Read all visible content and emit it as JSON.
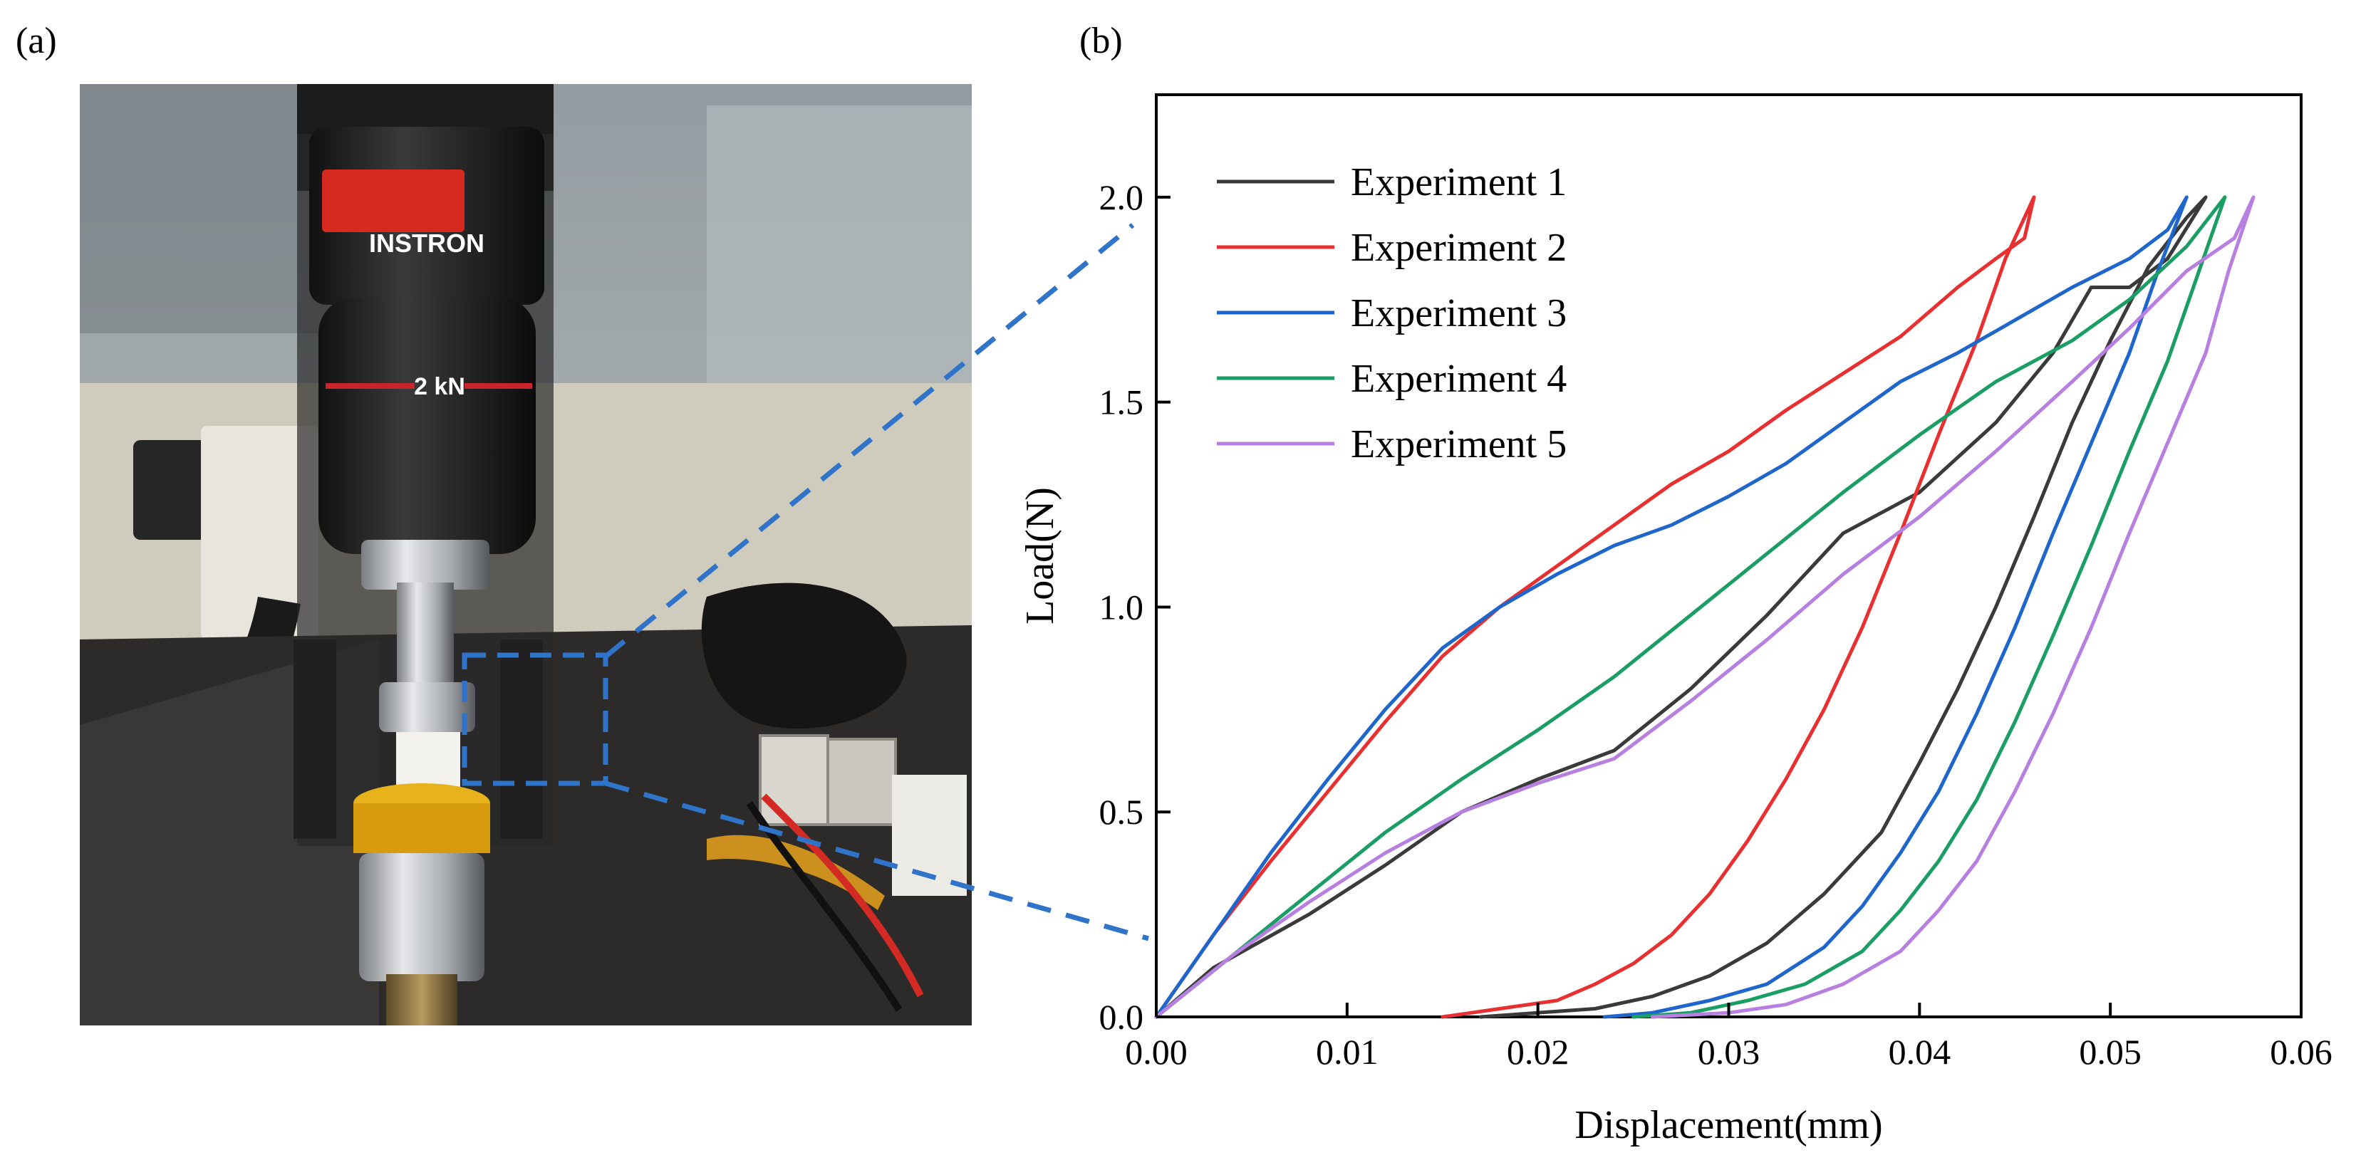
{
  "panels": {
    "a": {
      "label": "(a)"
    },
    "b": {
      "label": "(b)"
    }
  },
  "photo": {
    "brand_text": "INSTRON",
    "capacity_text": "2 kN"
  },
  "colors": {
    "callout": "#2f74c9",
    "exp1": "#3a3a3a",
    "exp2": "#e83030",
    "exp3": "#1f66cc",
    "exp4": "#1a9e63",
    "exp5": "#b77fe0"
  },
  "chart_data": {
    "type": "line",
    "title": "",
    "xlabel": "Displacement(mm)",
    "ylabel": "Load(N)",
    "xlim": [
      0.0,
      0.06
    ],
    "ylim": [
      0.0,
      2.25
    ],
    "xticks": [
      0.0,
      0.01,
      0.02,
      0.03,
      0.04,
      0.05,
      0.06
    ],
    "xtick_labels": [
      "0.00",
      "0.01",
      "0.02",
      "0.03",
      "0.04",
      "0.05",
      "0.06"
    ],
    "yticks": [
      0.0,
      0.5,
      1.0,
      1.5,
      2.0
    ],
    "ytick_labels": [
      "0.0",
      "0.5",
      "1.0",
      "1.5",
      "2.0"
    ],
    "grid": false,
    "legend_position": "top-left",
    "series": [
      {
        "name": "Experiment 1",
        "color": "#3a3a3a",
        "x": [
          0.0,
          0.003,
          0.008,
          0.012,
          0.016,
          0.02,
          0.024,
          0.028,
          0.032,
          0.036,
          0.04,
          0.044,
          0.047,
          0.049,
          0.051,
          0.053,
          0.055,
          0.054,
          0.052,
          0.05,
          0.048,
          0.046,
          0.044,
          0.042,
          0.04,
          0.038,
          0.035,
          0.032,
          0.029,
          0.026,
          0.023,
          0.02,
          0.017
        ],
        "y": [
          0.0,
          0.12,
          0.25,
          0.37,
          0.5,
          0.58,
          0.65,
          0.8,
          0.98,
          1.18,
          1.28,
          1.45,
          1.62,
          1.78,
          1.78,
          1.85,
          2.0,
          1.95,
          1.83,
          1.65,
          1.45,
          1.22,
          1.0,
          0.8,
          0.62,
          0.45,
          0.3,
          0.18,
          0.1,
          0.05,
          0.02,
          0.01,
          0.0
        ]
      },
      {
        "name": "Experiment 2",
        "color": "#e83030",
        "x": [
          0.0,
          0.003,
          0.006,
          0.009,
          0.012,
          0.015,
          0.018,
          0.021,
          0.024,
          0.027,
          0.03,
          0.033,
          0.036,
          0.039,
          0.042,
          0.044,
          0.0455,
          0.046,
          0.0445,
          0.043,
          0.041,
          0.039,
          0.037,
          0.035,
          0.033,
          0.031,
          0.029,
          0.027,
          0.025,
          0.023,
          0.021,
          0.018,
          0.015
        ],
        "y": [
          0.0,
          0.2,
          0.38,
          0.55,
          0.72,
          0.88,
          1.0,
          1.1,
          1.2,
          1.3,
          1.38,
          1.48,
          1.57,
          1.66,
          1.78,
          1.85,
          1.9,
          2.0,
          1.85,
          1.65,
          1.42,
          1.18,
          0.95,
          0.75,
          0.58,
          0.43,
          0.3,
          0.2,
          0.13,
          0.08,
          0.04,
          0.02,
          0.0
        ]
      },
      {
        "name": "Experiment 3",
        "color": "#1f66cc",
        "x": [
          0.0,
          0.003,
          0.006,
          0.009,
          0.012,
          0.015,
          0.018,
          0.021,
          0.024,
          0.027,
          0.03,
          0.033,
          0.036,
          0.039,
          0.042,
          0.045,
          0.048,
          0.051,
          0.053,
          0.054,
          0.0525,
          0.051,
          0.049,
          0.047,
          0.045,
          0.043,
          0.041,
          0.039,
          0.037,
          0.035,
          0.032,
          0.029,
          0.026,
          0.0235
        ],
        "y": [
          0.0,
          0.2,
          0.4,
          0.58,
          0.75,
          0.9,
          1.0,
          1.08,
          1.15,
          1.2,
          1.27,
          1.35,
          1.45,
          1.55,
          1.62,
          1.7,
          1.78,
          1.85,
          1.92,
          2.0,
          1.82,
          1.62,
          1.4,
          1.18,
          0.95,
          0.74,
          0.55,
          0.4,
          0.27,
          0.17,
          0.08,
          0.04,
          0.01,
          0.0
        ]
      },
      {
        "name": "Experiment 4",
        "color": "#1a9e63",
        "x": [
          0.0,
          0.004,
          0.008,
          0.012,
          0.016,
          0.02,
          0.024,
          0.028,
          0.032,
          0.036,
          0.04,
          0.044,
          0.048,
          0.051,
          0.054,
          0.056,
          0.0545,
          0.053,
          0.051,
          0.049,
          0.047,
          0.045,
          0.043,
          0.041,
          0.039,
          0.037,
          0.034,
          0.031,
          0.028,
          0.025
        ],
        "y": [
          0.0,
          0.15,
          0.3,
          0.45,
          0.58,
          0.7,
          0.83,
          0.98,
          1.13,
          1.28,
          1.42,
          1.55,
          1.65,
          1.75,
          1.88,
          2.0,
          1.8,
          1.6,
          1.38,
          1.15,
          0.93,
          0.72,
          0.53,
          0.38,
          0.26,
          0.16,
          0.08,
          0.04,
          0.01,
          0.0
        ]
      },
      {
        "name": "Experiment 5",
        "color": "#b77fe0",
        "x": [
          0.0,
          0.004,
          0.008,
          0.012,
          0.016,
          0.02,
          0.024,
          0.028,
          0.032,
          0.036,
          0.04,
          0.044,
          0.048,
          0.051,
          0.054,
          0.0565,
          0.0575,
          0.0562,
          0.055,
          0.053,
          0.051,
          0.049,
          0.047,
          0.045,
          0.043,
          0.041,
          0.039,
          0.036,
          0.033,
          0.03,
          0.026
        ],
        "y": [
          0.0,
          0.15,
          0.28,
          0.4,
          0.5,
          0.57,
          0.63,
          0.77,
          0.92,
          1.08,
          1.22,
          1.38,
          1.55,
          1.68,
          1.82,
          1.9,
          2.0,
          1.82,
          1.62,
          1.4,
          1.18,
          0.95,
          0.74,
          0.55,
          0.38,
          0.26,
          0.16,
          0.08,
          0.03,
          0.01,
          0.0
        ]
      }
    ]
  }
}
